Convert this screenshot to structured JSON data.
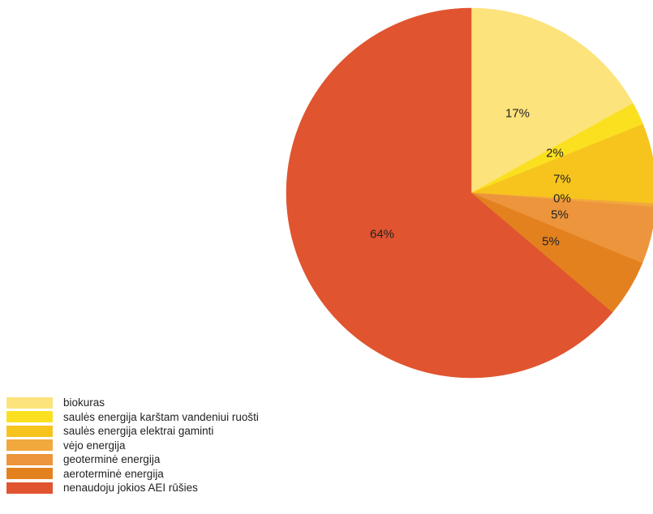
{
  "chart_data": {
    "type": "pie",
    "slices": [
      {
        "label": "biokuras",
        "value": 17,
        "display": "17%",
        "color": "#fde37b"
      },
      {
        "label": "saulės energija karštam vandeniui ruošti",
        "value": 2,
        "display": "2%",
        "color": "#fbe020"
      },
      {
        "label": "saulės energija elektrai gaminti",
        "value": 7,
        "display": "7%",
        "color": "#f7c41e"
      },
      {
        "label": "vėjo energija",
        "value": 0.3,
        "display": "0%",
        "color": "#f1a83c"
      },
      {
        "label": "geoterminė energija",
        "value": 5,
        "display": "5%",
        "color": "#ed953c"
      },
      {
        "label": "aeroterminė energija",
        "value": 5,
        "display": "5%",
        "color": "#e4811f"
      },
      {
        "label": "nenaudoju jokios AEI rūšies",
        "value": 64,
        "display": "64%",
        "color": "#e0542f"
      }
    ],
    "legend_position": "bottom-left"
  }
}
